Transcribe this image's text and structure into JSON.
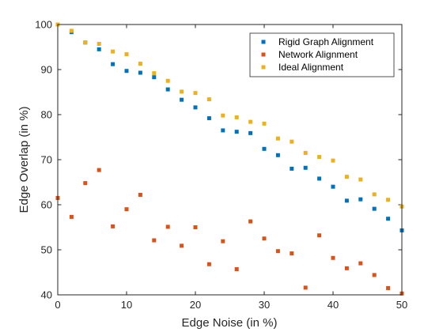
{
  "colors": {
    "rigid": "#0072BD",
    "network": "#D95319",
    "ideal": "#EDB120",
    "axis": "#262626",
    "background": "#ffffff"
  },
  "chart_data": {
    "type": "scatter",
    "title": "",
    "xlabel": "Edge Noise (in %)",
    "ylabel": "Edge Overlap (in %)",
    "xlim": [
      0,
      50
    ],
    "ylim": [
      40,
      100
    ],
    "xticks": [
      0,
      10,
      20,
      30,
      40,
      50
    ],
    "yticks": [
      40,
      50,
      60,
      70,
      80,
      90,
      100
    ],
    "grid": false,
    "legend_position": "top-right",
    "series": [
      {
        "name": "Rigid Graph Alignment",
        "color_key": "rigid",
        "x": [
          0,
          2,
          4,
          6,
          8,
          10,
          12,
          14,
          16,
          18,
          20,
          22,
          24,
          26,
          28,
          30,
          32,
          34,
          36,
          38,
          40,
          42,
          44,
          46,
          48,
          50
        ],
        "y": [
          100,
          98.3,
          96,
          94.5,
          91.2,
          89.7,
          89.3,
          88.3,
          85.6,
          83.3,
          81.6,
          79.2,
          76.5,
          76.2,
          75.9,
          72.4,
          71.0,
          68.0,
          68.2,
          65.8,
          64.0,
          60.9,
          61.2,
          59.1,
          56.9,
          54.3
        ]
      },
      {
        "name": "Network Alignment",
        "color_key": "network",
        "x": [
          0,
          2,
          4,
          6,
          8,
          10,
          12,
          14,
          16,
          18,
          20,
          22,
          24,
          26,
          28,
          30,
          32,
          34,
          36,
          38,
          40,
          42,
          44,
          46,
          48,
          50
        ],
        "y": [
          61.5,
          57.3,
          64.8,
          67.7,
          55.2,
          59.0,
          62.2,
          52.1,
          55.1,
          50.9,
          55.0,
          46.8,
          51.9,
          45.7,
          56.3,
          52.5,
          49.7,
          49.2,
          41.6,
          53.2,
          48.2,
          45.9,
          47.0,
          44.4,
          41.5,
          40.3
        ]
      },
      {
        "name": "Ideal Alignment",
        "color_key": "ideal",
        "x": [
          0,
          2,
          4,
          6,
          8,
          10,
          12,
          14,
          16,
          18,
          20,
          22,
          24,
          26,
          28,
          30,
          32,
          34,
          36,
          38,
          40,
          42,
          44,
          46,
          48,
          50
        ],
        "y": [
          100,
          98.6,
          96.0,
          95.7,
          94.0,
          93.4,
          91.3,
          89.2,
          87.5,
          85.1,
          84.8,
          83.4,
          79.8,
          79.4,
          78.4,
          78.0,
          74.7,
          74.0,
          71.5,
          70.6,
          69.8,
          66.2,
          65.6,
          62.3,
          61.1,
          59.6
        ]
      }
    ]
  }
}
